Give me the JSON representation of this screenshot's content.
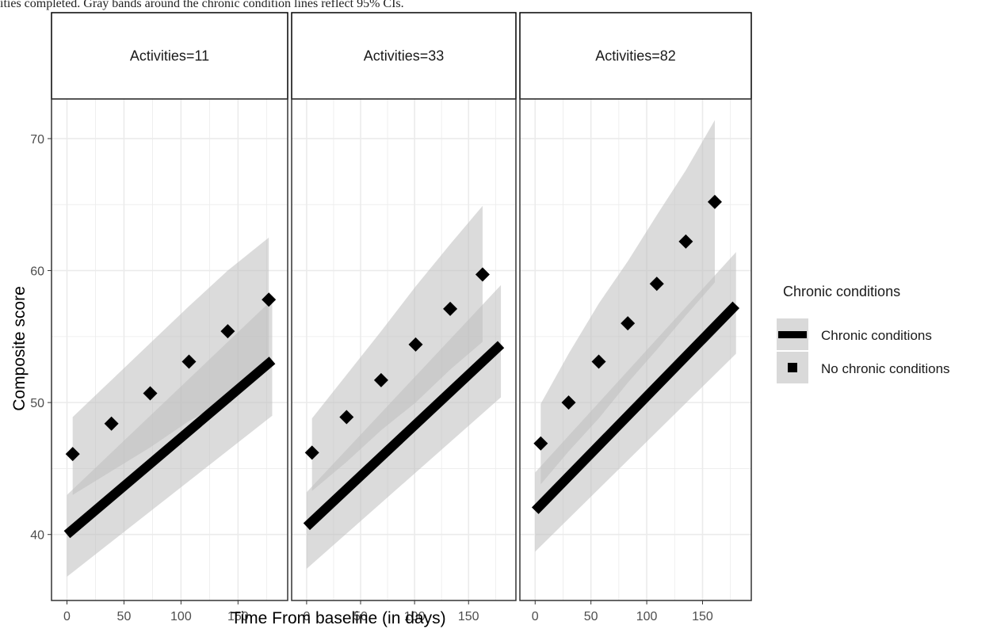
{
  "caption": "ities completed. Gray bands around the chronic condition lines reflect 95% CIs.",
  "chart_data": {
    "type": "line",
    "xlabel": "Time From baseline (in days)",
    "ylabel": "Composite score",
    "xlim": [
      -8,
      188
    ],
    "ylim": [
      35,
      73
    ],
    "xticks": [
      0,
      50,
      100,
      150
    ],
    "yticks": [
      40,
      50,
      60,
      70
    ],
    "grid": true,
    "legend": {
      "title": "Chronic conditions",
      "placement": "right",
      "entries": [
        "Chronic conditions",
        "No chronic conditions"
      ]
    },
    "colors": {
      "band": "#bdbdbd",
      "line": "#000000",
      "grid": "#ebebeb",
      "panel_border": "#333333",
      "axis_text": "#4d4d4d"
    },
    "panels": [
      {
        "label": "Activities=11",
        "series": [
          {
            "name": "Chronic conditions",
            "style": "solid",
            "x": [
              0,
              180
            ],
            "y": [
              40.0,
              53.2
            ],
            "ci_lower": [
              36.8,
              49.0
            ],
            "ci_upper": [
              43.0,
              57.8
            ]
          },
          {
            "name": "No chronic conditions",
            "style": "dotted",
            "x": [
              5,
              39,
              73,
              107,
              141,
              177
            ],
            "y": [
              46.1,
              48.4,
              50.7,
              53.1,
              55.4,
              57.8
            ],
            "ci_lower": [
              43.0,
              44.8,
              46.6,
              48.6,
              50.2,
              53.0
            ],
            "ci_upper": [
              48.9,
              51.7,
              54.5,
              57.3,
              60.0,
              62.5
            ]
          }
        ]
      },
      {
        "label": "Activities=33",
        "series": [
          {
            "name": "Chronic conditions",
            "style": "solid",
            "x": [
              0,
              180
            ],
            "y": [
              40.6,
              54.4
            ],
            "ci_lower": [
              37.4,
              50.4
            ],
            "ci_upper": [
              43.2,
              58.9
            ]
          },
          {
            "name": "No chronic conditions",
            "style": "dotted",
            "x": [
              5,
              37,
              69,
              101,
              133,
              163
            ],
            "y": [
              46.2,
              48.9,
              51.7,
              54.4,
              57.1,
              59.7
            ],
            "ci_lower": [
              43.3,
              45.5,
              47.9,
              50.0,
              52.5,
              54.6
            ],
            "ci_upper": [
              48.8,
              52.1,
              55.4,
              58.8,
              62.0,
              64.9
            ]
          }
        ]
      },
      {
        "label": "Activities=82",
        "series": [
          {
            "name": "Chronic conditions",
            "style": "solid",
            "x": [
              0,
              180
            ],
            "y": [
              41.8,
              57.4
            ],
            "ci_lower": [
              38.7,
              53.7
            ],
            "ci_upper": [
              44.7,
              61.4
            ]
          },
          {
            "name": "No chronic conditions",
            "style": "dotted",
            "x": [
              5,
              30,
              57,
              83,
              109,
              135,
              161
            ],
            "y": [
              46.9,
              50.0,
              53.1,
              56.0,
              59.0,
              62.2,
              65.2
            ],
            "ci_lower": [
              43.8,
              46.3,
              48.8,
              51.5,
              54.0,
              56.6,
              59.1
            ],
            "ci_upper": [
              49.9,
              53.7,
              57.5,
              60.7,
              64.2,
              67.6,
              71.4
            ]
          }
        ]
      }
    ]
  }
}
